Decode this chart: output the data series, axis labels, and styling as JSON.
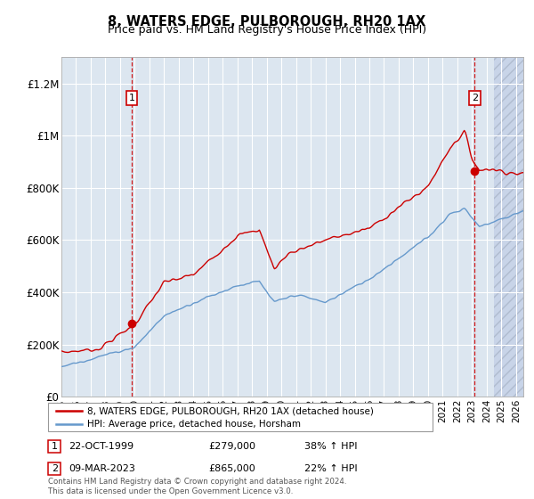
{
  "title": "8, WATERS EDGE, PULBOROUGH, RH20 1AX",
  "subtitle": "Price paid vs. HM Land Registry's House Price Index (HPI)",
  "ylim": [
    0,
    1300000
  ],
  "yticks": [
    0,
    200000,
    400000,
    600000,
    800000,
    1000000,
    1200000
  ],
  "ytick_labels": [
    "£0",
    "£200K",
    "£400K",
    "£600K",
    "£800K",
    "£1M",
    "£1.2M"
  ],
  "xlim_start": 1995.0,
  "xlim_end": 2026.5,
  "xticks": [
    1995,
    1996,
    1997,
    1998,
    1999,
    2000,
    2001,
    2002,
    2003,
    2004,
    2005,
    2006,
    2007,
    2008,
    2009,
    2010,
    2011,
    2012,
    2013,
    2014,
    2015,
    2016,
    2017,
    2018,
    2019,
    2020,
    2021,
    2022,
    2023,
    2024,
    2025,
    2026
  ],
  "red_line_color": "#cc0000",
  "blue_line_color": "#6699cc",
  "background_color": "#dce6f0",
  "grid_color": "#ffffff",
  "sale1_x": 1999.79,
  "sale1_y": 279000,
  "sale2_x": 2023.19,
  "sale2_y": 865000,
  "sale1_date": "22-OCT-1999",
  "sale1_price": "£279,000",
  "sale1_hpi": "38% ↑ HPI",
  "sale2_date": "09-MAR-2023",
  "sale2_price": "£865,000",
  "sale2_hpi": "22% ↑ HPI",
  "legend1": "8, WATERS EDGE, PULBOROUGH, RH20 1AX (detached house)",
  "legend2": "HPI: Average price, detached house, Horsham",
  "footer": "Contains HM Land Registry data © Crown copyright and database right 2024.\nThis data is licensed under the Open Government Licence v3.0.",
  "hatch_start": 2024.5
}
